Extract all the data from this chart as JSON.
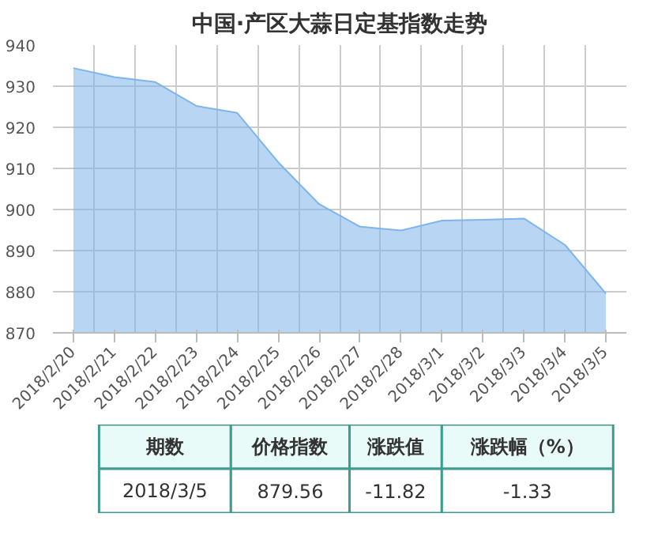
{
  "chart_data": {
    "type": "area",
    "title": "中国·产区大蒜日定基指数走势",
    "categories": [
      "2018/2/20",
      "2018/2/21",
      "2018/2/22",
      "2018/2/23",
      "2018/2/24",
      "2018/2/25",
      "2018/2/26",
      "2018/2/27",
      "2018/2/28",
      "2018/3/1",
      "2018/3/2",
      "2018/3/3",
      "2018/3/4",
      "2018/3/5"
    ],
    "series": [
      {
        "color": "#7eb4ea",
        "values": [
          934.4,
          932.2,
          931.0,
          925.2,
          923.5,
          911.5,
          901.3,
          895.8,
          894.9,
          897.3,
          897.5,
          897.8,
          891.4,
          879.56
        ]
      }
    ],
    "ylim": [
      870,
      940
    ],
    "yticks": [
      870,
      880,
      890,
      900,
      910,
      920,
      930,
      940
    ],
    "grid": true,
    "annotations": [
      "期数",
      "价格指数",
      "涨跌值",
      "涨跌幅（%）",
      "2018/3/5",
      "879.56",
      "-11.82",
      "-1.33"
    ]
  }
}
